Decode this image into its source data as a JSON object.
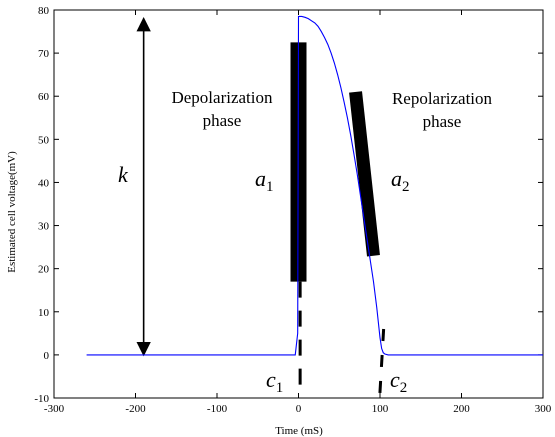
{
  "chart_data": {
    "type": "line",
    "xlabel": "Time (mS)",
    "ylabel": "Estimated cell voltage(mV)",
    "xlim": [
      -300,
      300
    ],
    "ylim": [
      -10,
      80
    ],
    "xticks": [
      -300,
      -200,
      -100,
      0,
      100,
      200,
      300
    ],
    "yticks": [
      -10,
      0,
      10,
      20,
      30,
      40,
      50,
      60,
      70,
      80
    ],
    "grid": false,
    "series": [
      {
        "color": "#0000ff",
        "x": [
          -260,
          -4,
          -1,
          0,
          2,
          4,
          8,
          12,
          16,
          20,
          24,
          28,
          32,
          36,
          40,
          44,
          48,
          52,
          56,
          60,
          64,
          68,
          72,
          76,
          80,
          84,
          88,
          92,
          96,
          100,
          102,
          104,
          106,
          110,
          120,
          300
        ],
        "y": [
          0,
          0,
          5,
          78.5,
          78.5,
          78.5,
          78.3,
          78.0,
          77.5,
          77.0,
          76.2,
          75.0,
          73.6,
          72.0,
          70.0,
          67.7,
          65.0,
          62.0,
          58.6,
          55.0,
          51.0,
          46.6,
          42.0,
          37.0,
          32.0,
          27.0,
          22.0,
          17.0,
          11.0,
          4.0,
          1.5,
          0.5,
          0.2,
          0,
          0,
          0
        ]
      }
    ],
    "annotations": {
      "depolarization": {
        "text": "Depolarization",
        "text2": "phase"
      },
      "repolarization": {
        "text": "Repolarization",
        "text2": "phase"
      },
      "k": {
        "text": "k",
        "x": -190,
        "y_from": 0,
        "y_to": 78.5
      },
      "a1": {
        "base": "a",
        "sub": "1",
        "bar": {
          "x": 0,
          "y_top": 72.5,
          "y_bottom": 17
        }
      },
      "a2": {
        "base": "a",
        "sub": "2",
        "bar": {
          "x_top": 70,
          "y_top": 61,
          "x_bottom": 92,
          "y_bottom": 23
        }
      },
      "c1": {
        "base": "c",
        "sub": "1",
        "dash_x": 2
      },
      "c2": {
        "base": "c",
        "sub": "2",
        "dash_x": 102
      }
    }
  }
}
